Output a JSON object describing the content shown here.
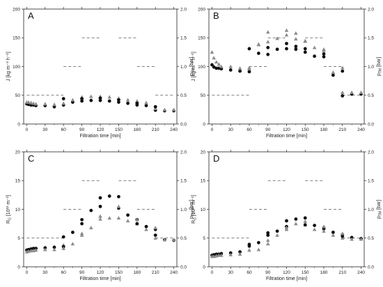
{
  "figure": {
    "x_label": "Filtration time [min]",
    "x_ticks": [
      "0",
      "30",
      "60",
      "90",
      "120",
      "150",
      "180",
      "210",
      "240"
    ],
    "right_axis_label": "p_TM [bar]",
    "right_ticks": [
      "0.0",
      "0.5",
      "1.0",
      "1.5",
      "2.0"
    ]
  },
  "colors": {
    "circle_series": "#111111",
    "triangle_series": "#8c8c8c",
    "pressure_line": "#555555",
    "axis": "#222222"
  },
  "chart_data": [
    {
      "panel": "A",
      "type": "scatter",
      "ylabel": "J [kg m⁻² h⁻¹]",
      "ylim": [
        0,
        200
      ],
      "yticks": [
        "0",
        "50",
        "100",
        "150",
        "200"
      ],
      "xlim": [
        -5,
        245
      ],
      "series": [
        {
          "marker": "circle",
          "x": [
            0,
            3,
            7,
            11,
            15,
            30,
            45,
            60,
            75,
            90,
            105,
            120,
            135,
            150,
            165,
            180,
            195,
            210,
            225,
            240
          ],
          "y": [
            35,
            34,
            33,
            33,
            32,
            32,
            30,
            33,
            38,
            40,
            41,
            41,
            40,
            38,
            36,
            33,
            32,
            24,
            23,
            23
          ]
        },
        {
          "marker": "triangle",
          "x": [
            0,
            3,
            7,
            11,
            15,
            30,
            45,
            60,
            75,
            90,
            105,
            120,
            135,
            150,
            165,
            180,
            195,
            210,
            225,
            240
          ],
          "y": [
            38,
            38,
            37,
            36,
            35,
            35,
            34,
            36,
            42,
            47,
            48,
            48,
            47,
            45,
            42,
            40,
            37,
            27,
            25,
            25
          ]
        },
        {
          "marker": "circle",
          "x": [
            60,
            90,
            120,
            150,
            180,
            210
          ],
          "y": [
            44,
            44,
            45,
            42,
            36,
            30
          ]
        }
      ],
      "pressure_steps": [
        {
          "from": 0,
          "to": 60,
          "p": 0.5
        },
        {
          "from": 60,
          "to": 90,
          "p": 1.0
        },
        {
          "from": 90,
          "to": 120,
          "p": 1.5
        },
        {
          "from": 120,
          "to": 150,
          "p": 2.0
        },
        {
          "from": 150,
          "to": 180,
          "p": 1.5
        },
        {
          "from": 180,
          "to": 210,
          "p": 1.0
        },
        {
          "from": 210,
          "to": 240,
          "p": 0.5
        }
      ]
    },
    {
      "panel": "B",
      "type": "scatter",
      "ylabel": "J [kg m⁻² h⁻¹]",
      "ylim": [
        0,
        200
      ],
      "yticks": [
        "0",
        "50",
        "100",
        "150",
        "200"
      ],
      "xlim": [
        -5,
        245
      ],
      "series": [
        {
          "marker": "circle",
          "x": [
            0,
            3,
            7,
            11,
            15,
            30,
            45,
            60,
            75,
            90,
            105,
            120,
            135,
            150,
            165,
            180,
            195,
            210,
            225,
            240
          ],
          "y": [
            103,
            99,
            97,
            97,
            96,
            94,
            92,
            91,
            123,
            121,
            130,
            131,
            130,
            125,
            118,
            117,
            85,
            49,
            52,
            52
          ]
        },
        {
          "marker": "triangle",
          "x": [
            0,
            3,
            7,
            11,
            15,
            30,
            45,
            60,
            75,
            90,
            105,
            120,
            135,
            150,
            165,
            180,
            195,
            210,
            225,
            240
          ],
          "y": [
            125,
            115,
            108,
            104,
            100,
            100,
            97,
            96,
            139,
            160,
            149,
            163,
            158,
            144,
            133,
            128,
            90,
            55,
            55,
            55
          ]
        },
        {
          "marker": "circle",
          "x": [
            60,
            90,
            120,
            135,
            150,
            180,
            210
          ],
          "y": [
            131,
            133,
            140,
            135,
            131,
            122,
            92
          ]
        },
        {
          "marker": "triangle",
          "x": [
            60,
            75,
            90,
            120,
            135,
            150,
            180,
            210
          ],
          "y": [
            98,
            138,
            143,
            155,
            148,
            145,
            130,
            98
          ]
        }
      ],
      "pressure_steps": [
        {
          "from": 0,
          "to": 60,
          "p": 0.5
        },
        {
          "from": 60,
          "to": 90,
          "p": 1.0
        },
        {
          "from": 90,
          "to": 120,
          "p": 1.5
        },
        {
          "from": 120,
          "to": 150,
          "p": 2.0
        },
        {
          "from": 150,
          "to": 180,
          "p": 1.5
        },
        {
          "from": 180,
          "to": 210,
          "p": 1.0
        },
        {
          "from": 210,
          "to": 240,
          "p": 0.5
        }
      ]
    },
    {
      "panel": "C",
      "type": "scatter",
      "ylabel": "R_G [10¹² m⁻¹]",
      "ylim": [
        0,
        20
      ],
      "yticks": [
        "0",
        "5",
        "10",
        "15",
        "20"
      ],
      "xlim": [
        -5,
        245
      ],
      "series": [
        {
          "marker": "circle",
          "x": [
            0,
            3,
            7,
            11,
            15,
            30,
            45,
            60,
            75,
            90,
            105,
            120,
            135,
            150,
            165,
            180,
            195,
            210,
            225,
            240
          ],
          "y": [
            2.9,
            3.0,
            3.1,
            3.2,
            3.2,
            3.3,
            3.4,
            5.2,
            6.0,
            8.2,
            9.8,
            12.0,
            12.3,
            10.2,
            9.0,
            8.2,
            7.0,
            5.5,
            4.7,
            4.6
          ]
        },
        {
          "marker": "triangle",
          "x": [
            0,
            3,
            7,
            11,
            15,
            30,
            45,
            60,
            75,
            90,
            105,
            120,
            135,
            150,
            165,
            180,
            195,
            210,
            225,
            240
          ],
          "y": [
            2.6,
            2.7,
            2.8,
            2.8,
            2.9,
            3.0,
            3.0,
            3.8,
            4.0,
            5.5,
            6.8,
            8.3,
            8.5,
            8.5,
            8.0,
            7.5,
            6.5,
            5.0,
            4.7,
            4.7
          ]
        },
        {
          "marker": "circle",
          "x": [
            60,
            90,
            120,
            150,
            180,
            210
          ],
          "y": [
            3.5,
            7.5,
            10.5,
            12.2,
            7.5,
            6.5
          ]
        },
        {
          "marker": "triangle",
          "x": [
            60,
            90,
            120,
            150,
            180,
            210
          ],
          "y": [
            3.2,
            5.8,
            8.8,
            10.5,
            8.2,
            6.8
          ]
        }
      ],
      "pressure_steps": [
        {
          "from": 0,
          "to": 60,
          "p": 0.5
        },
        {
          "from": 60,
          "to": 90,
          "p": 1.0
        },
        {
          "from": 90,
          "to": 120,
          "p": 1.5
        },
        {
          "from": 120,
          "to": 150,
          "p": 2.0
        },
        {
          "from": 150,
          "to": 180,
          "p": 1.5
        },
        {
          "from": 180,
          "to": 210,
          "p": 1.0
        },
        {
          "from": 210,
          "to": 240,
          "p": 0.5
        }
      ]
    },
    {
      "panel": "D",
      "type": "scatter",
      "ylabel": "R_G [10¹² m⁻¹]",
      "ylim": [
        0,
        20
      ],
      "yticks": [
        "0",
        "5",
        "10",
        "15",
        "20"
      ],
      "xlim": [
        -5,
        245
      ],
      "series": [
        {
          "marker": "circle",
          "x": [
            0,
            3,
            7,
            11,
            15,
            30,
            45,
            60,
            75,
            90,
            105,
            120,
            135,
            150,
            165,
            180,
            195,
            210,
            225,
            240
          ],
          "y": [
            2.0,
            2.1,
            2.2,
            2.2,
            2.3,
            2.4,
            2.6,
            3.6,
            4.2,
            5.9,
            6.2,
            8.0,
            8.3,
            8.5,
            7.2,
            6.6,
            6.0,
            5.6,
            5.1,
            4.9
          ]
        },
        {
          "marker": "triangle",
          "x": [
            0,
            3,
            7,
            11,
            15,
            30,
            45,
            60,
            75,
            90,
            105,
            120,
            135,
            150,
            165,
            180,
            195,
            210,
            225,
            240
          ],
          "y": [
            1.8,
            1.8,
            1.9,
            2.0,
            2.0,
            2.1,
            2.2,
            2.9,
            3.0,
            4.0,
            5.5,
            6.5,
            7.5,
            7.3,
            6.5,
            6.2,
            5.5,
            5.0,
            4.8,
            4.8
          ]
        },
        {
          "marker": "circle",
          "x": [
            60,
            90,
            120,
            150,
            180,
            210
          ],
          "y": [
            3.9,
            5.5,
            7.0,
            7.3,
            6.8,
            5.3
          ]
        },
        {
          "marker": "triangle",
          "x": [
            90,
            120,
            150,
            180,
            210
          ],
          "y": [
            4.6,
            6.8,
            7.9,
            7.0,
            5.8
          ]
        }
      ],
      "pressure_steps": [
        {
          "from": 0,
          "to": 60,
          "p": 0.5
        },
        {
          "from": 60,
          "to": 90,
          "p": 1.0
        },
        {
          "from": 90,
          "to": 120,
          "p": 1.5
        },
        {
          "from": 120,
          "to": 150,
          "p": 2.0
        },
        {
          "from": 150,
          "to": 180,
          "p": 1.5
        },
        {
          "from": 180,
          "to": 210,
          "p": 1.0
        },
        {
          "from": 210,
          "to": 240,
          "p": 0.5
        }
      ]
    }
  ]
}
